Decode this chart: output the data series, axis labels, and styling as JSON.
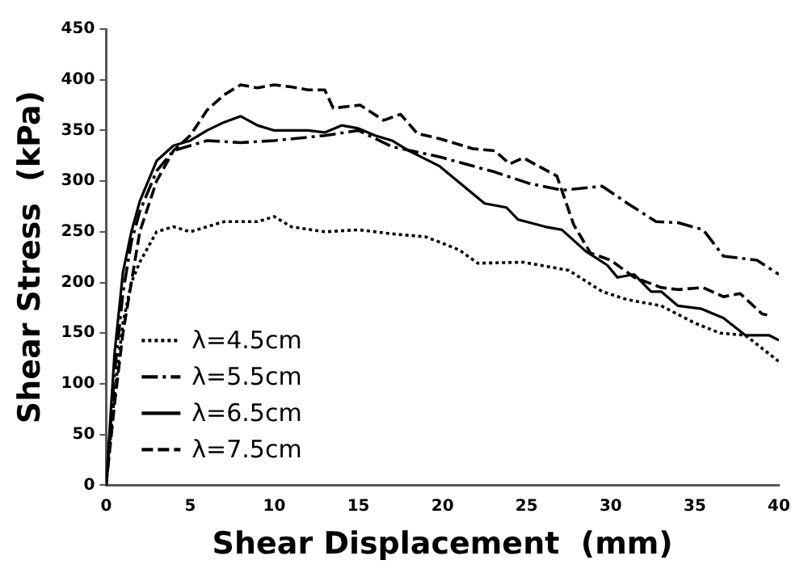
{
  "chart_data": {
    "type": "line",
    "xlabel": "Shear Displacement  (mm)",
    "ylabel": "Shear Stress  (kPa)",
    "xlim": [
      0,
      40
    ],
    "xticks": [
      0,
      5,
      10,
      15,
      20,
      25,
      30,
      35,
      40
    ],
    "ylim": [
      0,
      450
    ],
    "yticks": [
      0,
      50,
      100,
      150,
      200,
      250,
      300,
      350,
      400,
      450
    ],
    "grid": false,
    "legend": "bottom left",
    "marker": "none",
    "series": [
      {
        "name": "λ=4.5cm",
        "color": "#000000",
        "line_style": "dotted",
        "x": [
          0,
          0.5,
          1,
          1.5,
          2,
          3,
          4,
          5,
          7,
          9,
          10,
          11,
          13,
          15,
          17,
          19,
          19.8,
          21,
          22.1,
          24.8,
          27.5,
          29.5,
          31,
          33,
          35,
          36.5,
          38,
          40
        ],
        "values": [
          0,
          90,
          160,
          200,
          220,
          250,
          255,
          250,
          260,
          260,
          265,
          255,
          250,
          252,
          248,
          245,
          240,
          232,
          219,
          220,
          212,
          191,
          183,
          177,
          160,
          150,
          148,
          122
        ]
      },
      {
        "name": "λ=5.5cm",
        "color": "#000000",
        "line_style": "dashed",
        "x": [
          0,
          0.5,
          1,
          1.5,
          2,
          3,
          4,
          5,
          6,
          8,
          10,
          13,
          15,
          17,
          19.8,
          23.1,
          25.1,
          27.1,
          29.5,
          31,
          32.7,
          34,
          35.5,
          36.7,
          38.7,
          40
        ],
        "values": [
          0,
          110,
          190,
          240,
          270,
          310,
          330,
          335,
          340,
          338,
          340,
          345,
          350,
          334,
          324,
          309,
          298,
          291,
          295,
          278,
          260,
          259,
          252,
          226,
          222,
          208
        ]
      },
      {
        "name": "λ=6.5cm",
        "color": "#000000",
        "line_style": "solid",
        "x": [
          0,
          0.5,
          1,
          1.5,
          2,
          3,
          4,
          5,
          6,
          7,
          8,
          9,
          10,
          12,
          13,
          14,
          15,
          16,
          17,
          18,
          19.8,
          22.5,
          23.8,
          24.5,
          26.1,
          27.1,
          28.5,
          29.8,
          30.4,
          31.4,
          32.4,
          33,
          34,
          35.4,
          36.7,
          38,
          39.4,
          40
        ],
        "values": [
          0,
          130,
          210,
          250,
          280,
          320,
          335,
          340,
          350,
          358,
          364,
          355,
          350,
          350,
          348,
          355,
          352,
          345,
          340,
          330,
          315,
          278,
          274,
          262,
          255,
          252,
          231,
          217,
          205,
          208,
          191,
          191,
          177,
          174,
          165,
          148,
          148,
          143
        ]
      },
      {
        "name": "λ=7.5cm",
        "color": "#000000",
        "line_style": "dashed",
        "x": [
          0,
          0.5,
          1,
          1.5,
          2,
          3,
          4,
          5,
          6,
          7,
          8,
          9,
          10,
          11,
          12,
          13,
          13.5,
          15.1,
          16.5,
          17.5,
          18.5,
          19.8,
          21.8,
          23.1,
          24,
          24.8,
          26.8,
          27.8,
          28.8,
          30,
          31.4,
          33,
          34,
          35.5,
          36.7,
          37.7,
          39,
          39.3
        ],
        "values": [
          0,
          80,
          150,
          200,
          250,
          300,
          330,
          345,
          370,
          385,
          395,
          392,
          395,
          393,
          390,
          390,
          372,
          375,
          360,
          366,
          347,
          342,
          332,
          330,
          317,
          323,
          305,
          257,
          229,
          222,
          205,
          195,
          193,
          195,
          186,
          189,
          169,
          168
        ]
      }
    ]
  }
}
